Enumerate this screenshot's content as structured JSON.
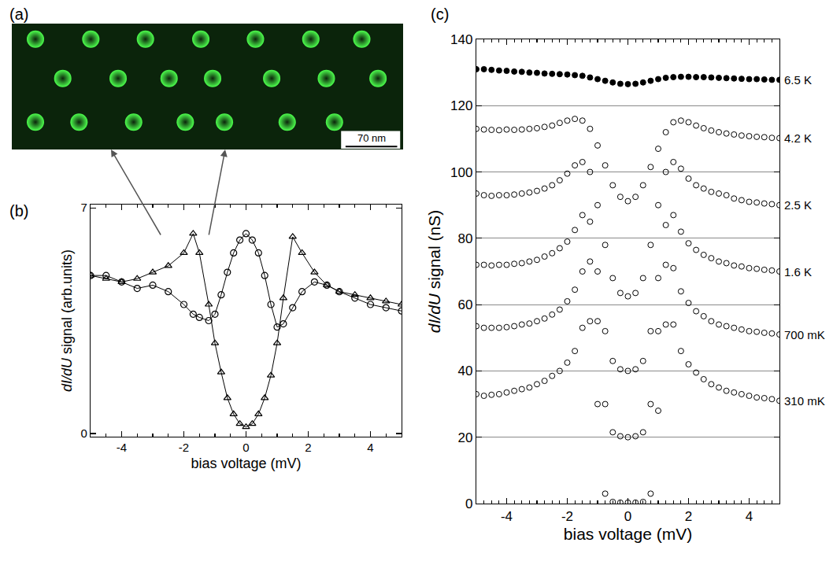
{
  "chart_data": [
    {
      "panel": "(a)",
      "type": "scatter",
      "color": "#4dff4d",
      "x": [
        32,
        107,
        181,
        256,
        330,
        405,
        474,
        69,
        144,
        213,
        272,
        352,
        426,
        496,
        32,
        91,
        165,
        235,
        288,
        373,
        437
      ],
      "values": [
        149,
        149,
        149,
        149,
        149,
        149,
        149,
        96,
        96,
        96,
        96,
        96,
        96,
        96,
        37,
        37,
        37,
        37,
        37,
        37,
        37
      ],
      "xlim": [
        0,
        530
      ],
      "ylim": [
        0,
        170
      ],
      "tick_labels": false,
      "scale_bar": {
        "length": 70,
        "label": "70 nm"
      }
    },
    {
      "panel": "(b)",
      "type": "line",
      "x_label": "bias voltage (mV)",
      "y_label": "dI/dU signal (arb.units)",
      "xlim": [
        -5,
        5
      ],
      "xticks": [
        -4,
        -2,
        0,
        2,
        4
      ],
      "ylim": [
        -0.1,
        7.1
      ],
      "yticks": [
        0,
        7
      ],
      "x": [
        -5,
        -4.5,
        -4,
        -3.5,
        -3,
        -2.5,
        -2,
        -1.7,
        -1.5,
        -1.2,
        -1,
        -0.8,
        -0.6,
        -0.4,
        -0.2,
        0,
        0.2,
        0.4,
        0.6,
        0.8,
        1,
        1.2,
        1.5,
        1.8,
        2.2,
        2.6,
        3,
        3.5,
        4,
        4.5,
        5
      ],
      "series": [
        {
          "color": "#000000",
          "marker": "triangle",
          "values": [
            4.9,
            4.8,
            4.7,
            4.8,
            5.0,
            5.2,
            5.6,
            6.2,
            5.6,
            4.0,
            2.8,
            1.9,
            1.1,
            0.6,
            0.3,
            0.2,
            0.3,
            0.6,
            1.1,
            1.8,
            2.8,
            4.2,
            6.1,
            5.6,
            5.0,
            4.6,
            4.4,
            4.3,
            4.2,
            4.1,
            4.0
          ]
        },
        {
          "color": "#000000",
          "marker": "circle",
          "values": [
            4.9,
            4.9,
            4.7,
            4.5,
            4.6,
            4.4,
            4.0,
            3.7,
            3.6,
            3.5,
            3.7,
            4.3,
            5.0,
            5.6,
            6.0,
            6.2,
            6.0,
            5.6,
            4.9,
            4.0,
            3.3,
            3.4,
            3.9,
            4.4,
            4.7,
            4.6,
            4.4,
            4.2,
            4.0,
            3.9,
            3.8
          ]
        }
      ]
    },
    {
      "panel": "(c)",
      "type": "scatter",
      "x_label": "bias voltage (mV)",
      "y_label": "dI/dU signal (nS)",
      "xlim": [
        -5,
        5
      ],
      "xticks": [
        -4,
        -2,
        0,
        2,
        4
      ],
      "ylim": [
        0,
        140
      ],
      "yticks": [
        0,
        20,
        40,
        60,
        80,
        100,
        120,
        140
      ],
      "grid": true,
      "x": [
        -5,
        -4.75,
        -4.5,
        -4.25,
        -4,
        -3.75,
        -3.5,
        -3.25,
        -3,
        -2.75,
        -2.5,
        -2.25,
        -2,
        -1.75,
        -1.5,
        -1.25,
        -1,
        -0.75,
        -0.5,
        -0.25,
        0,
        0.25,
        0.5,
        0.75,
        1,
        1.25,
        1.5,
        1.75,
        2,
        2.25,
        2.5,
        2.75,
        3,
        3.25,
        3.5,
        3.75,
        4,
        4.25,
        4.5,
        4.75,
        5
      ],
      "series": [
        {
          "name": "6.5 K",
          "color": "#000000",
          "marker": "filled",
          "values": [
            131,
            131,
            130.8,
            130.6,
            130.5,
            130.3,
            130.2,
            130,
            129.9,
            129.7,
            129.6,
            129.5,
            129.4,
            129.2,
            129,
            128.5,
            128,
            127.5,
            127,
            126.6,
            126.5,
            126.6,
            127,
            127.5,
            128,
            128.4,
            128.6,
            128.7,
            128.7,
            128.6,
            128.6,
            128.5,
            128.4,
            128.3,
            128.2,
            128.1,
            128,
            128,
            127.9,
            127.8,
            127.8
          ]
        },
        {
          "name": "4.2 K",
          "color": "#000000",
          "marker": "open",
          "values": [
            113,
            112.8,
            112.7,
            112.6,
            112.8,
            112.7,
            112.8,
            113,
            113.2,
            113.6,
            114,
            114.8,
            115.5,
            116,
            115.5,
            113,
            108,
            102,
            96,
            92.5,
            91.2,
            92.5,
            96,
            101.5,
            107,
            112,
            115,
            115.5,
            115,
            114,
            113.2,
            112.5,
            112,
            111.6,
            111.3,
            111,
            110.8,
            110.6,
            110.5,
            110.3,
            110.2
          ]
        },
        {
          "name": "2.5 K",
          "color": "#000000",
          "marker": "open",
          "values": [
            93.5,
            93,
            92.8,
            93,
            93,
            93.2,
            93.5,
            93.8,
            94.3,
            95,
            96,
            97.5,
            99.5,
            102,
            103,
            100,
            90,
            78,
            68,
            63.5,
            62.5,
            63.5,
            68,
            78,
            90,
            100,
            103,
            101,
            98,
            96,
            95,
            94,
            93.5,
            93,
            92,
            91.5,
            91,
            90.8,
            90.5,
            90.3,
            90
          ]
        },
        {
          "name": "1.6 K",
          "color": "#000000",
          "marker": "open",
          "values": [
            72,
            72,
            71.8,
            72,
            72,
            72.3,
            72.5,
            73,
            73.5,
            74.5,
            75.5,
            77,
            79,
            82.5,
            87,
            85,
            70,
            52,
            43,
            40.5,
            40,
            40.5,
            43,
            52,
            68,
            84,
            87,
            82,
            78.5,
            76.5,
            75,
            74,
            73,
            72.5,
            71.8,
            71.5,
            71,
            70.8,
            70.5,
            70.3,
            70
          ]
        },
        {
          "name": "700 mK",
          "color": "#000000",
          "marker": "open",
          "values": [
            53.5,
            53,
            53,
            53,
            53.2,
            53.5,
            54,
            54.3,
            55,
            55.8,
            57,
            58.5,
            61,
            64.5,
            70,
            73,
            55,
            30,
            21.5,
            20.3,
            20,
            20.3,
            21.5,
            30,
            52,
            72,
            71,
            64,
            60.5,
            58,
            56.5,
            55,
            54,
            53.5,
            53,
            52.5,
            52,
            51.8,
            51.5,
            51.3,
            51
          ]
        },
        {
          "name": "310 mK",
          "color": "#000000",
          "marker": "open",
          "values": [
            33,
            32.5,
            32.8,
            33,
            33.5,
            34,
            34.5,
            35,
            36,
            37,
            38.5,
            40,
            42.5,
            46,
            53,
            55,
            30,
            3,
            0.5,
            0.3,
            0.3,
            0.3,
            0.5,
            3,
            28,
            54,
            54,
            46,
            42,
            39.5,
            37.5,
            36,
            35,
            34,
            33.5,
            33,
            32.5,
            32,
            31.8,
            31.5,
            31
          ]
        }
      ]
    }
  ]
}
